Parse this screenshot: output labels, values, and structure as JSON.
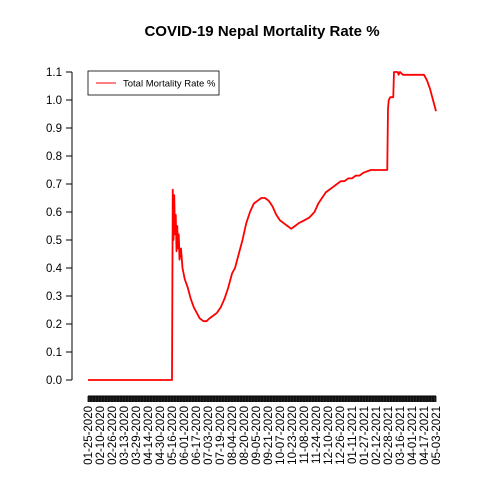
{
  "chart_data": {
    "type": "line",
    "title": "COVID-19 Nepal Mortality Rate %",
    "xlabel": "",
    "ylabel": "",
    "ylim": [
      0.0,
      1.1
    ],
    "yticks": [
      "0.0",
      "0.1",
      "0.2",
      "0.3",
      "0.4",
      "0.5",
      "0.6",
      "0.7",
      "0.8",
      "0.9",
      "1.0",
      "1.1"
    ],
    "x_tick_labels": [
      "01-25-2020",
      "02-10-2020",
      "02-26-2020",
      "03-13-2020",
      "03-29-2020",
      "04-14-2020",
      "04-30-2020",
      "05-16-2020",
      "06-01-2020",
      "06-17-2020",
      "07-03-2020",
      "07-19-2020",
      "08-04-2020",
      "08-20-2020",
      "09-05-2020",
      "09-21-2020",
      "10-07-2020",
      "10-23-2020",
      "11-08-2020",
      "11-24-2020",
      "12-10-2020",
      "12-26-2020",
      "01-11-2021",
      "01-27-2021",
      "02-12-2021",
      "02-28-2021",
      "03-16-2021",
      "04-01-2021",
      "04-17-2021",
      "05-03-2021"
    ],
    "grid": false,
    "legend": {
      "placement": "top-left",
      "entries": [
        "Total Mortality Rate %"
      ]
    },
    "series": [
      {
        "name": "Total Mortality Rate %",
        "color": "#ff0000",
        "points": [
          [
            "01-25-2020",
            0.0
          ],
          [
            "05-16-2020",
            0.0
          ],
          [
            "05-17-2020",
            0.68
          ],
          [
            "05-18-2020",
            0.5
          ],
          [
            "05-19-2020",
            0.66
          ],
          [
            "05-20-2020",
            0.52
          ],
          [
            "05-21-2020",
            0.59
          ],
          [
            "05-22-2020",
            0.46
          ],
          [
            "05-23-2020",
            0.55
          ],
          [
            "05-24-2020",
            0.47
          ],
          [
            "05-25-2020",
            0.52
          ],
          [
            "05-26-2020",
            0.43
          ],
          [
            "05-28-2020",
            0.47
          ],
          [
            "05-30-2020",
            0.4
          ],
          [
            "06-02-2020",
            0.36
          ],
          [
            "06-06-2020",
            0.33
          ],
          [
            "06-10-2020",
            0.29
          ],
          [
            "06-14-2020",
            0.26
          ],
          [
            "06-18-2020",
            0.24
          ],
          [
            "06-22-2020",
            0.22
          ],
          [
            "06-27-2020",
            0.21
          ],
          [
            "07-01-2020",
            0.21
          ],
          [
            "07-05-2020",
            0.22
          ],
          [
            "07-10-2020",
            0.23
          ],
          [
            "07-15-2020",
            0.24
          ],
          [
            "07-20-2020",
            0.26
          ],
          [
            "07-25-2020",
            0.29
          ],
          [
            "07-30-2020",
            0.33
          ],
          [
            "08-04-2020",
            0.38
          ],
          [
            "08-08-2020",
            0.4
          ],
          [
            "08-13-2020",
            0.45
          ],
          [
            "08-18-2020",
            0.5
          ],
          [
            "08-23-2020",
            0.56
          ],
          [
            "08-28-2020",
            0.6
          ],
          [
            "09-02-2020",
            0.63
          ],
          [
            "09-07-2020",
            0.64
          ],
          [
            "09-12-2020",
            0.65
          ],
          [
            "09-17-2020",
            0.65
          ],
          [
            "09-22-2020",
            0.64
          ],
          [
            "09-27-2020",
            0.62
          ],
          [
            "10-02-2020",
            0.59
          ],
          [
            "10-07-2020",
            0.57
          ],
          [
            "10-12-2020",
            0.56
          ],
          [
            "10-17-2020",
            0.55
          ],
          [
            "10-22-2020",
            0.54
          ],
          [
            "10-27-2020",
            0.55
          ],
          [
            "11-01-2020",
            0.56
          ],
          [
            "11-08-2020",
            0.57
          ],
          [
            "11-15-2020",
            0.58
          ],
          [
            "11-22-2020",
            0.6
          ],
          [
            "11-27-2020",
            0.63
          ],
          [
            "12-02-2020",
            0.65
          ],
          [
            "12-07-2020",
            0.67
          ],
          [
            "12-12-2020",
            0.68
          ],
          [
            "12-17-2020",
            0.69
          ],
          [
            "12-22-2020",
            0.7
          ],
          [
            "12-27-2020",
            0.71
          ],
          [
            "01-01-2021",
            0.71
          ],
          [
            "01-06-2021",
            0.72
          ],
          [
            "01-11-2021",
            0.72
          ],
          [
            "01-16-2021",
            0.73
          ],
          [
            "01-21-2021",
            0.73
          ],
          [
            "01-26-2021",
            0.74
          ],
          [
            "02-05-2021",
            0.75
          ],
          [
            "02-15-2021",
            0.75
          ],
          [
            "02-27-2021",
            0.75
          ],
          [
            "02-28-2021",
            0.97
          ],
          [
            "03-01-2021",
            1.0
          ],
          [
            "03-03-2021",
            1.01
          ],
          [
            "03-07-2021",
            1.01
          ],
          [
            "03-08-2021",
            1.1
          ],
          [
            "03-13-2021",
            1.1
          ],
          [
            "03-14-2021",
            1.09
          ],
          [
            "03-16-2021",
            1.1
          ],
          [
            "03-20-2021",
            1.09
          ],
          [
            "04-01-2021",
            1.09
          ],
          [
            "04-10-2021",
            1.09
          ],
          [
            "04-17-2021",
            1.09
          ],
          [
            "04-21-2021",
            1.07
          ],
          [
            "04-25-2021",
            1.04
          ],
          [
            "04-29-2021",
            1.0
          ],
          [
            "05-02-2021",
            0.97
          ],
          [
            "05-03-2021",
            0.96
          ]
        ]
      }
    ]
  }
}
